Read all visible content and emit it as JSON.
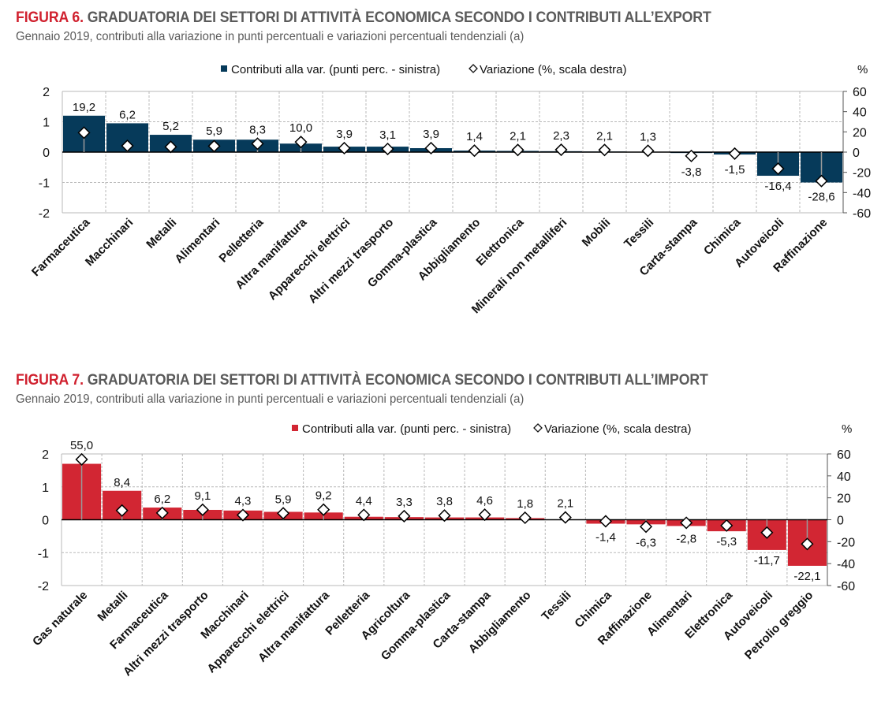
{
  "chart_data": [
    {
      "type": "bar",
      "figure_label": "FIGURA 6.",
      "title": "GRADUATORIA DEI SETTORI DI ATTIVITÀ ECONOMICA SECONDO I CONTRIBUTI ALL’EXPORT",
      "subtitle": "Gennaio 2019, contributi alla variazione in punti percentuali e variazioni percentuali tendenziali (a)",
      "bar_color": "#063a5a",
      "legend": {
        "placement": "top-center",
        "bar_label": "Contributi alla var. (punti perc. - sinistra)",
        "marker_label": "Variazione (%, scala destra)"
      },
      "right_axis_unit": "%",
      "ylim_left": [
        -2,
        2
      ],
      "yticks_left": [
        2,
        1,
        0,
        -1,
        -2
      ],
      "ylim_right": [
        -60,
        60
      ],
      "yticks_right": [
        60,
        40,
        20,
        0,
        -20,
        -40,
        -60
      ],
      "grid": true,
      "categories": [
        "Farmaceutica",
        "Macchinari",
        "Metalli",
        "Alimentari",
        "Pelletteria",
        "Altra manifattura",
        "Apparecchi elettrici",
        "Altri mezzi trasporto",
        "Gomma-plastica",
        "Abbigliamento",
        "Elettronica",
        "Minerali non metalliferi",
        "Mobili",
        "Tessili",
        "Carta-stampa",
        "Chimica",
        "Autoveicoli",
        "Raffinazione"
      ],
      "series": [
        {
          "name": "Contributi alla var. (punti perc. - sinistra)",
          "axis": "left",
          "values": [
            1.2,
            0.95,
            0.57,
            0.41,
            0.41,
            0.28,
            0.18,
            0.18,
            0.13,
            0.05,
            0.04,
            0.03,
            0.02,
            0.01,
            -0.03,
            -0.08,
            -0.78,
            -1.0
          ]
        },
        {
          "name": "Variazione (%, scala destra)",
          "axis": "right",
          "values": [
            19.2,
            6.2,
            5.2,
            5.9,
            8.3,
            10.0,
            3.9,
            3.1,
            3.9,
            1.4,
            2.1,
            2.3,
            2.1,
            1.3,
            -3.8,
            -1.5,
            -16.4,
            -28.6
          ]
        }
      ],
      "data_labels": [
        "19,2",
        "6,2",
        "5,2",
        "5,9",
        "8,3",
        "10,0",
        "3,9",
        "3,1",
        "3,9",
        "1,4",
        "2,1",
        "2,3",
        "2,1",
        "1,3",
        "-3,8",
        "-1,5",
        "-16,4",
        "-28,6"
      ]
    },
    {
      "type": "bar",
      "figure_label": "FIGURA 7.",
      "title": "GRADUATORIA DEI SETTORI DI ATTIVITÀ ECONOMICA SECONDO I CONTRIBUTI ALL’IMPORT",
      "subtitle": "Gennaio 2019, contributi alla variazione in punti percentuali e variazioni percentuali tendenziali (a)",
      "bar_color": "#d22633",
      "legend": {
        "placement": "top-center",
        "bar_label": "Contributi alla var. (punti perc. - sinistra)",
        "marker_label": "Variazione (%, scala destra)"
      },
      "right_axis_unit": "%",
      "ylim_left": [
        -2,
        2
      ],
      "yticks_left": [
        2,
        1,
        0,
        -1,
        -2
      ],
      "ylim_right": [
        -60,
        60
      ],
      "yticks_right": [
        60,
        40,
        20,
        0,
        -20,
        -40,
        -60
      ],
      "grid": true,
      "categories": [
        "Gas naturale",
        "Metalli",
        "Farmaceutica",
        "Altri mezzi trasporto",
        "Macchinari",
        "Apparecchi elettrici",
        "Altra manifattura",
        "Pelletteria",
        "Agricoltura",
        "Gomma-plastica",
        "Carta-stampa",
        "Abbigliamento",
        "Tessili",
        "Chimica",
        "Raffinazione",
        "Alimentari",
        "Elettronica",
        "Autoveicoli",
        "Petrolio greggio"
      ],
      "series": [
        {
          "name": "Contributi alla var. (punti perc. - sinistra)",
          "axis": "left",
          "values": [
            1.7,
            0.88,
            0.37,
            0.3,
            0.28,
            0.24,
            0.22,
            0.09,
            0.08,
            0.07,
            0.07,
            0.05,
            0.01,
            -0.12,
            -0.14,
            -0.19,
            -0.35,
            -0.92,
            -1.4
          ]
        },
        {
          "name": "Variazione (%, scala destra)",
          "axis": "right",
          "values": [
            55.0,
            8.4,
            6.2,
            9.1,
            4.3,
            5.9,
            9.2,
            4.4,
            3.3,
            3.8,
            4.6,
            1.8,
            2.1,
            -1.4,
            -6.3,
            -2.8,
            -5.3,
            -11.7,
            -22.1
          ]
        }
      ],
      "data_labels": [
        "55,0",
        "8,4",
        "6,2",
        "9,1",
        "4,3",
        "5,9",
        "9,2",
        "4,4",
        "3,3",
        "3,8",
        "4,6",
        "1,8",
        "2,1",
        "-1,4",
        "-6,3",
        "-2,8",
        "-5,3",
        "-11,7",
        "-22,1"
      ]
    }
  ]
}
